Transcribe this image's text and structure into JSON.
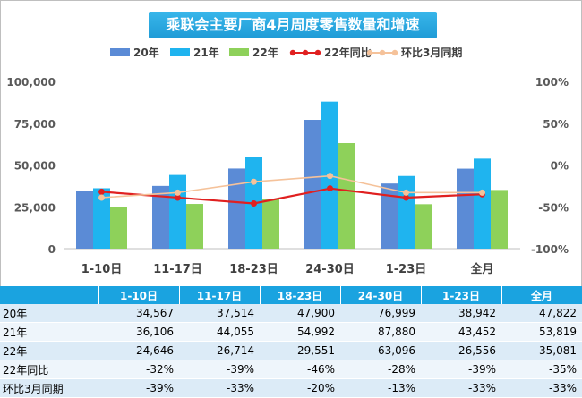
{
  "title": "乘联会主要厂商4月周度零售数量和增速",
  "chart_data": {
    "type": "bar",
    "categories": [
      "1-10日",
      "11-17日",
      "18-23日",
      "24-30日",
      "1-23日",
      "全月"
    ],
    "series": [
      {
        "name": "20年",
        "type": "bar",
        "color": "#5b8bd6",
        "values": [
          34567,
          37514,
          47900,
          76999,
          38942,
          47822
        ]
      },
      {
        "name": "21年",
        "type": "bar",
        "color": "#1fb4ef",
        "values": [
          36106,
          44055,
          54992,
          87880,
          43452,
          53819
        ]
      },
      {
        "name": "22年",
        "type": "bar",
        "color": "#8ed15a",
        "values": [
          24646,
          26714,
          29551,
          63096,
          26556,
          35081
        ]
      },
      {
        "name": "22年同比",
        "type": "line",
        "axis": "right",
        "color": "#e02020",
        "values": [
          -32,
          -39,
          -46,
          -28,
          -39,
          -35
        ]
      },
      {
        "name": "环比3月同期",
        "type": "line",
        "axis": "right",
        "color": "#f5c29a",
        "values": [
          -39,
          -33,
          -20,
          -13,
          -33,
          -33
        ]
      }
    ],
    "y_left": {
      "min": 0,
      "max": 100000,
      "ticks": [
        "0",
        "25,000",
        "50,000",
        "75,000",
        "100,000"
      ]
    },
    "y_right": {
      "min": -100,
      "max": 100,
      "ticks": [
        "-100%",
        "-50%",
        "0%",
        "50%",
        "100%"
      ]
    },
    "legend_position": "top",
    "grid": false
  },
  "table": {
    "headers": [
      "",
      "1-10日",
      "11-17日",
      "18-23日",
      "24-30日",
      "1-23日",
      "全月"
    ],
    "rows": [
      {
        "label": "20年",
        "cells": [
          "34,567",
          "37,514",
          "47,900",
          "76,999",
          "38,942",
          "47,822"
        ]
      },
      {
        "label": "21年",
        "cells": [
          "36,106",
          "44,055",
          "54,992",
          "87,880",
          "43,452",
          "53,819"
        ]
      },
      {
        "label": "22年",
        "cells": [
          "24,646",
          "26,714",
          "29,551",
          "63,096",
          "26,556",
          "35,081"
        ]
      },
      {
        "label": "22年同比",
        "cells": [
          "-32%",
          "-39%",
          "-46%",
          "-28%",
          "-39%",
          "-35%"
        ]
      },
      {
        "label": "环比3月同期",
        "cells": [
          "-39%",
          "-33%",
          "-20%",
          "-13%",
          "-33%",
          "-33%"
        ]
      }
    ]
  }
}
